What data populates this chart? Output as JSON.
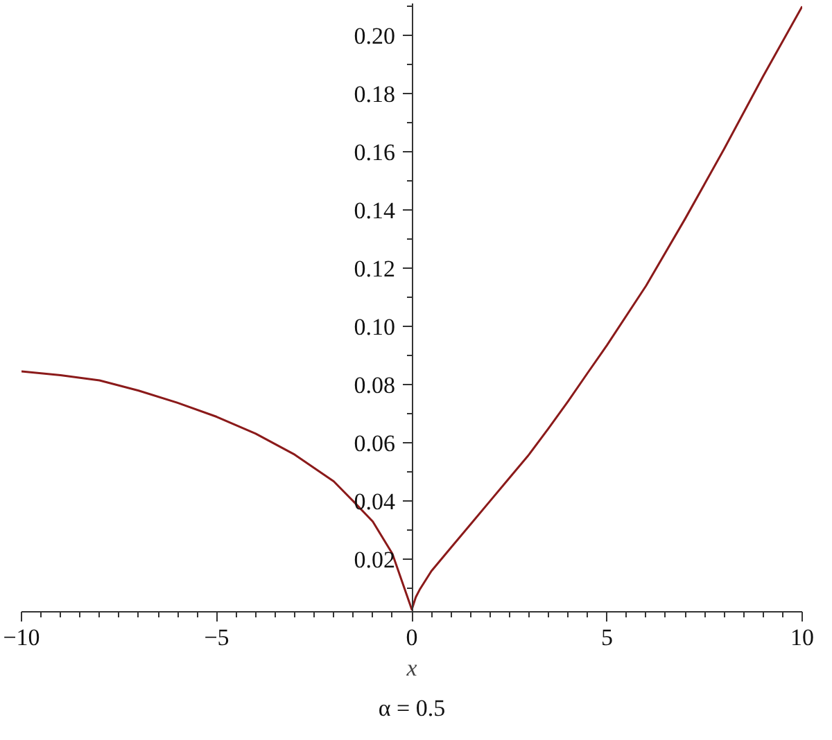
{
  "chart_data": {
    "type": "line",
    "xlabel": "x",
    "annotations": [
      "α = 0.5"
    ],
    "series": [
      {
        "color": "#8b1a1a",
        "x": [
          -10,
          -9,
          -8,
          -7,
          -6,
          -5,
          -4,
          -3,
          -2,
          -1.5,
          -1,
          -0.5,
          0,
          0.1,
          0.2,
          0.5,
          1,
          1.5,
          2,
          2.5,
          3,
          3.5,
          4,
          4.5,
          5,
          6,
          7,
          8,
          9,
          10
        ],
        "values": [
          0.0846,
          0.0833,
          0.0815,
          0.078,
          0.0738,
          0.069,
          0.0632,
          0.056,
          0.0468,
          0.04,
          0.033,
          0.022,
          0.0028,
          0.007,
          0.0096,
          0.016,
          0.024,
          0.032,
          0.04,
          0.048,
          0.056,
          0.065,
          0.0743,
          0.084,
          0.0936,
          0.114,
          0.137,
          0.161,
          0.186,
          0.21
        ]
      }
    ],
    "xlim": [
      -10,
      10
    ],
    "ylim": [
      0.002,
      0.211
    ],
    "xticks": [
      {
        "value": -10,
        "label": "−10"
      },
      {
        "value": -5,
        "label": "−5"
      },
      {
        "value": 0,
        "label": "0"
      },
      {
        "value": 5,
        "label": "5"
      },
      {
        "value": 10,
        "label": "10"
      }
    ],
    "yticks": [
      {
        "value": 0.02,
        "label": "0.02"
      },
      {
        "value": 0.04,
        "label": "0.04"
      },
      {
        "value": 0.06,
        "label": "0.06"
      },
      {
        "value": 0.08,
        "label": "0.08"
      },
      {
        "value": 0.1,
        "label": "0.10"
      },
      {
        "value": 0.12,
        "label": "0.12"
      },
      {
        "value": 0.14,
        "label": "0.14"
      },
      {
        "value": 0.16,
        "label": "0.16"
      },
      {
        "value": 0.18,
        "label": "0.18"
      },
      {
        "value": 0.2,
        "label": "0.20"
      }
    ],
    "grid": false,
    "line_style": "solid",
    "marker": "none"
  }
}
